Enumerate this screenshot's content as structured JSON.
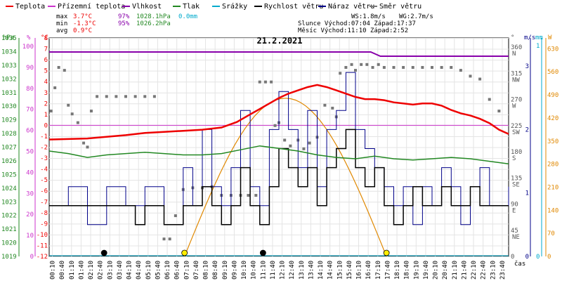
{
  "legend": [
    {
      "label": "Teplota",
      "color": "#ee0000"
    },
    {
      "label": "Přízemní teplota",
      "color": "#cc33cc"
    },
    {
      "label": "Vlhkost",
      "color": "#8800aa"
    },
    {
      "label": "Tlak",
      "color": "#228822"
    },
    {
      "label": "Srážky",
      "color": "#00aacc"
    },
    {
      "label": "Rychlost větru",
      "color": "#000000"
    },
    {
      "label": "Náraz větru",
      "color": "#000088"
    },
    {
      "label": "Směr větru",
      "color": "#777777"
    }
  ],
  "stats": {
    "max_label": "max",
    "max_temp": "3.7°C",
    "max_hum": "97%",
    "max_press": "1028.1hPa",
    "max_rain": "0.0mm",
    "min_label": "min",
    "min_temp": "-1.3°C",
    "min_hum": "95%",
    "min_press": "1026.2hPa",
    "avg_label": "avg",
    "avg_temp": "0.9°C",
    "ws": "WS:1.8m/s",
    "wg": "WG:2.7m/s",
    "sun": "Slunce Východ:07:04  Západ:17:37",
    "moon": "Měsíc  Východ:11:10  Západ:2:52"
  },
  "chart_data": {
    "type": "line",
    "title": "21.2.2021",
    "axes": {
      "pressure": {
        "label": "hPa",
        "ticks": [
          "1035",
          "1034",
          "1033",
          "1032",
          "1031",
          "1030",
          "1029",
          "1028",
          "1027",
          "1026",
          "1025",
          "1024",
          "1023",
          "1022",
          "1021",
          "1020",
          "1019"
        ]
      },
      "humidity": {
        "label": "%",
        "ticks": [
          "100",
          "90",
          "80",
          "70",
          "60",
          "50",
          "40",
          "30",
          "20",
          "10",
          "0"
        ]
      },
      "temperature": {
        "label": "°C",
        "ticks": [
          "8",
          "7",
          "6",
          "5",
          "4",
          "3",
          "2",
          "1",
          "0",
          "-1",
          "-2",
          "-3",
          "-4",
          "-5",
          "-6",
          "-7",
          "-8",
          "-9",
          "-10",
          "-11",
          "-12"
        ],
        "range": [
          -12,
          8
        ]
      },
      "direction": {
        "label": "°",
        "ticks": [
          {
            "value": "360",
            "dir": "N"
          },
          {
            "value": "315",
            "dir": "NW"
          },
          {
            "value": "270",
            "dir": "W"
          },
          {
            "value": "225",
            "dir": "SW"
          },
          {
            "value": "180",
            "dir": "S"
          },
          {
            "value": "135",
            "dir": "SE"
          },
          {
            "value": "90",
            "dir": "E"
          },
          {
            "value": "45",
            "dir": "NE"
          },
          {
            "value": "0",
            "dir": ""
          }
        ],
        "range": [
          0,
          360
        ]
      },
      "wind": {
        "label": "m/s",
        "ticks": [
          "3",
          "2",
          "1",
          "0"
        ],
        "range": [
          0,
          3.3
        ]
      },
      "rain": {
        "label": "mm",
        "ticks": [
          "1",
          "0"
        ]
      },
      "solar": {
        "label": "W",
        "ticks": [
          "630",
          "560",
          "490",
          "420",
          "350",
          "280",
          "210",
          "140",
          "70",
          "0"
        ],
        "range": [
          0,
          650
        ]
      },
      "x": {
        "label": "čas",
        "ticks": [
          "00:10",
          "00:40",
          "01:10",
          "01:40",
          "02:10",
          "02:40",
          "03:10",
          "03:40",
          "04:10",
          "04:40",
          "05:10",
          "05:40",
          "06:10",
          "06:40",
          "07:10",
          "07:40",
          "08:10",
          "08:40",
          "09:10",
          "09:40",
          "10:10",
          "10:40",
          "11:10",
          "11:40",
          "12:10",
          "12:40",
          "13:10",
          "13:40",
          "14:10",
          "14:40",
          "15:10",
          "15:40",
          "16:10",
          "16:40",
          "17:10",
          "17:40",
          "18:10",
          "18:40",
          "19:10",
          "19:40",
          "20:10",
          "20:40",
          "21:10",
          "21:40",
          "22:10",
          "22:40",
          "23:10",
          "23:40"
        ]
      }
    },
    "series": [
      {
        "name": "Teplota",
        "unit": "°C",
        "x": [
          0,
          2,
          4,
          5,
          6,
          7,
          8,
          9,
          9.8,
          10.5,
          11,
          11.5,
          12,
          12.5,
          13,
          13.5,
          14,
          14.5,
          15,
          15.5,
          16,
          16.5,
          17,
          17.5,
          18,
          18.5,
          19,
          19.5,
          20,
          20.5,
          21,
          21.5,
          22,
          22.5,
          23,
          23.5,
          24
        ],
        "y": [
          -1.3,
          -1.2,
          -0.9,
          -0.7,
          -0.6,
          -0.5,
          -0.4,
          -0.2,
          0.3,
          1.0,
          1.5,
          2.0,
          2.5,
          2.9,
          3.2,
          3.5,
          3.7,
          3.5,
          3.2,
          2.9,
          2.6,
          2.4,
          2.4,
          2.3,
          2.1,
          2.0,
          1.9,
          2.0,
          2.0,
          1.8,
          1.4,
          1.1,
          0.9,
          0.6,
          0.2,
          -0.4,
          -0.8
        ]
      },
      {
        "name": "Vlhkost",
        "unit": "%",
        "x": [
          0,
          16.8,
          17.3,
          24
        ],
        "y": [
          97,
          97,
          95,
          95
        ]
      },
      {
        "name": "Tlak",
        "unit": "hPa",
        "x": [
          0,
          1,
          2,
          3,
          4,
          5,
          6,
          7,
          8,
          9,
          10,
          11,
          12,
          13,
          14,
          15,
          16,
          17,
          18,
          19,
          20,
          21,
          22,
          23,
          24
        ],
        "y": [
          1027.2,
          1027.0,
          1026.7,
          1026.9,
          1027.0,
          1027.1,
          1027.0,
          1026.9,
          1026.9,
          1027.0,
          1027.3,
          1027.6,
          1027.4,
          1027.2,
          1026.9,
          1026.7,
          1026.6,
          1026.8,
          1026.6,
          1026.5,
          1026.6,
          1026.7,
          1026.6,
          1026.4,
          1026.2
        ]
      },
      {
        "name": "Srážky",
        "unit": "mm",
        "x": [
          0,
          24
        ],
        "y": [
          0,
          0
        ]
      },
      {
        "name": "Slunce",
        "unit": "W/m²",
        "sunrise": 7.07,
        "sunset": 17.62,
        "peak": 480
      },
      {
        "name": "Rychlost větru",
        "unit": "m/s",
        "x": [
          0,
          4,
          4.5,
          5,
          6,
          7,
          7.5,
          8,
          8.5,
          9,
          9.5,
          10,
          10.5,
          11,
          11.5,
          12,
          12.5,
          13,
          13.5,
          14,
          14.5,
          15,
          15.5,
          16,
          16.5,
          17,
          17.5,
          18,
          18.5,
          19,
          19.5,
          20,
          20.5,
          21,
          21.5,
          22,
          22.5,
          23,
          24
        ],
        "y": [
          0.8,
          0.8,
          0.5,
          0.8,
          0.5,
          0.8,
          0.8,
          1.1,
          0.8,
          0.5,
          0.8,
          1.4,
          0.8,
          0.5,
          1.1,
          1.7,
          1.4,
          1.1,
          1.4,
          0.8,
          1.4,
          1.7,
          2.0,
          1.4,
          1.1,
          1.4,
          0.8,
          0.5,
          0.8,
          1.1,
          0.8,
          0.8,
          1.1,
          0.8,
          0.8,
          1.1,
          0.8,
          0.8,
          0.8
        ]
      },
      {
        "name": "Náraz větru",
        "unit": "m/s",
        "x": [
          0,
          1,
          2,
          3,
          4,
          5,
          6,
          7,
          7.5,
          8,
          8.5,
          9,
          9.5,
          10,
          10.5,
          11,
          11.5,
          12,
          12.5,
          13,
          13.5,
          14,
          14.5,
          15,
          15.5,
          16,
          16.5,
          17,
          17.5,
          18,
          18.5,
          19,
          19.5,
          20,
          20.5,
          21,
          21.5,
          22,
          22.5,
          23,
          24
        ],
        "y": [
          0.8,
          1.1,
          0.5,
          1.1,
          0.8,
          1.1,
          0.5,
          1.4,
          0.8,
          2.0,
          1.1,
          0.8,
          1.4,
          2.3,
          1.1,
          0.8,
          2.0,
          2.6,
          2.0,
          1.4,
          2.3,
          1.1,
          2.0,
          2.3,
          2.9,
          2.0,
          1.7,
          1.4,
          1.1,
          0.8,
          1.1,
          0.5,
          1.1,
          0.8,
          1.4,
          1.1,
          0.5,
          1.1,
          1.4,
          0.8,
          1.1
        ]
      },
      {
        "name": "Směr větru",
        "unit": "°",
        "x": [
          0.1,
          0.3,
          0.5,
          0.8,
          1.0,
          1.2,
          1.5,
          1.8,
          2.0,
          2.2,
          2.5,
          3.0,
          3.5,
          4.0,
          4.5,
          5.0,
          5.5,
          6.0,
          6.3,
          6.6,
          7.0,
          7.5,
          8.0,
          8.5,
          9.0,
          9.5,
          10.0,
          10.4,
          10.8,
          11.0,
          11.3,
          11.6,
          11.8,
          12.0,
          12.3,
          12.6,
          13.0,
          13.3,
          13.6,
          14.0,
          14.4,
          14.8,
          15.0,
          15.2,
          15.5,
          15.8,
          16.0,
          16.3,
          16.6,
          16.9,
          17.2,
          17.5,
          18.0,
          18.5,
          19.0,
          19.5,
          20.0,
          20.5,
          21.0,
          21.5,
          22.0,
          22.5,
          23.0,
          23.5
        ],
        "y": [
          250,
          290,
          325,
          320,
          260,
          245,
          230,
          195,
          188,
          250,
          275,
          275,
          275,
          275,
          275,
          275,
          275,
          30,
          30,
          70,
          115,
          118,
          118,
          120,
          105,
          105,
          105,
          105,
          105,
          300,
          300,
          300,
          225,
          230,
          200,
          190,
          200,
          185,
          195,
          205,
          260,
          255,
          240,
          315,
          325,
          330,
          320,
          330,
          330,
          325,
          330,
          325,
          325,
          325,
          325,
          325,
          325,
          325,
          325,
          320,
          310,
          305,
          270,
          250
        ]
      }
    ],
    "markers": [
      {
        "name": "Východ měsíce",
        "x": 11.17,
        "color": "#000000"
      },
      {
        "name": "Západ měsíce",
        "x": 2.87,
        "color": "#000000"
      },
      {
        "name": "Východ slunce",
        "x": 7.07,
        "color": "#ffee00"
      },
      {
        "name": "Západ slunce",
        "x": 17.62,
        "color": "#ffee00"
      }
    ]
  }
}
